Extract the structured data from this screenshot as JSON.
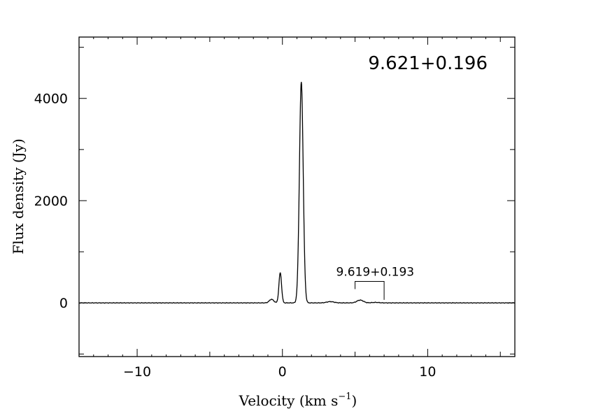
{
  "chart_data": {
    "type": "line",
    "title": "9.621+0.196",
    "xlabel": "Velocity (km s",
    "xlabel_superscript": "−1",
    "xlabel_suffix": ")",
    "ylabel": "Flux density (Jy)",
    "xlim": [
      -14,
      16
    ],
    "ylim": [
      -1050,
      5200
    ],
    "xticks": [
      -10,
      0,
      10
    ],
    "xtick_labels": [
      "−10",
      "0",
      "10"
    ],
    "yticks": [
      0,
      2000,
      4000
    ],
    "ytick_labels": [
      "0",
      "2000",
      "4000"
    ],
    "grid": false,
    "legend": "none",
    "series": [
      {
        "peaks": [
          {
            "center": 1.3,
            "amplitude": 4320,
            "sigma": 0.13
          },
          {
            "center": -0.15,
            "amplitude": 590,
            "sigma": 0.09
          },
          {
            "center": -0.75,
            "amplitude": 70,
            "sigma": 0.15
          },
          {
            "center": 3.3,
            "amplitude": 25,
            "sigma": 0.25
          },
          {
            "center": 5.35,
            "amplitude": 55,
            "sigma": 0.22
          },
          {
            "center": 6.4,
            "amplitude": 10,
            "sigma": 0.25
          }
        ],
        "color": "#000000"
      }
    ],
    "annotations": [
      {
        "label": "9.619+0.193",
        "x_start": 5.0,
        "x_end": 7.0,
        "y_low": 60,
        "y_high": 420
      }
    ]
  }
}
